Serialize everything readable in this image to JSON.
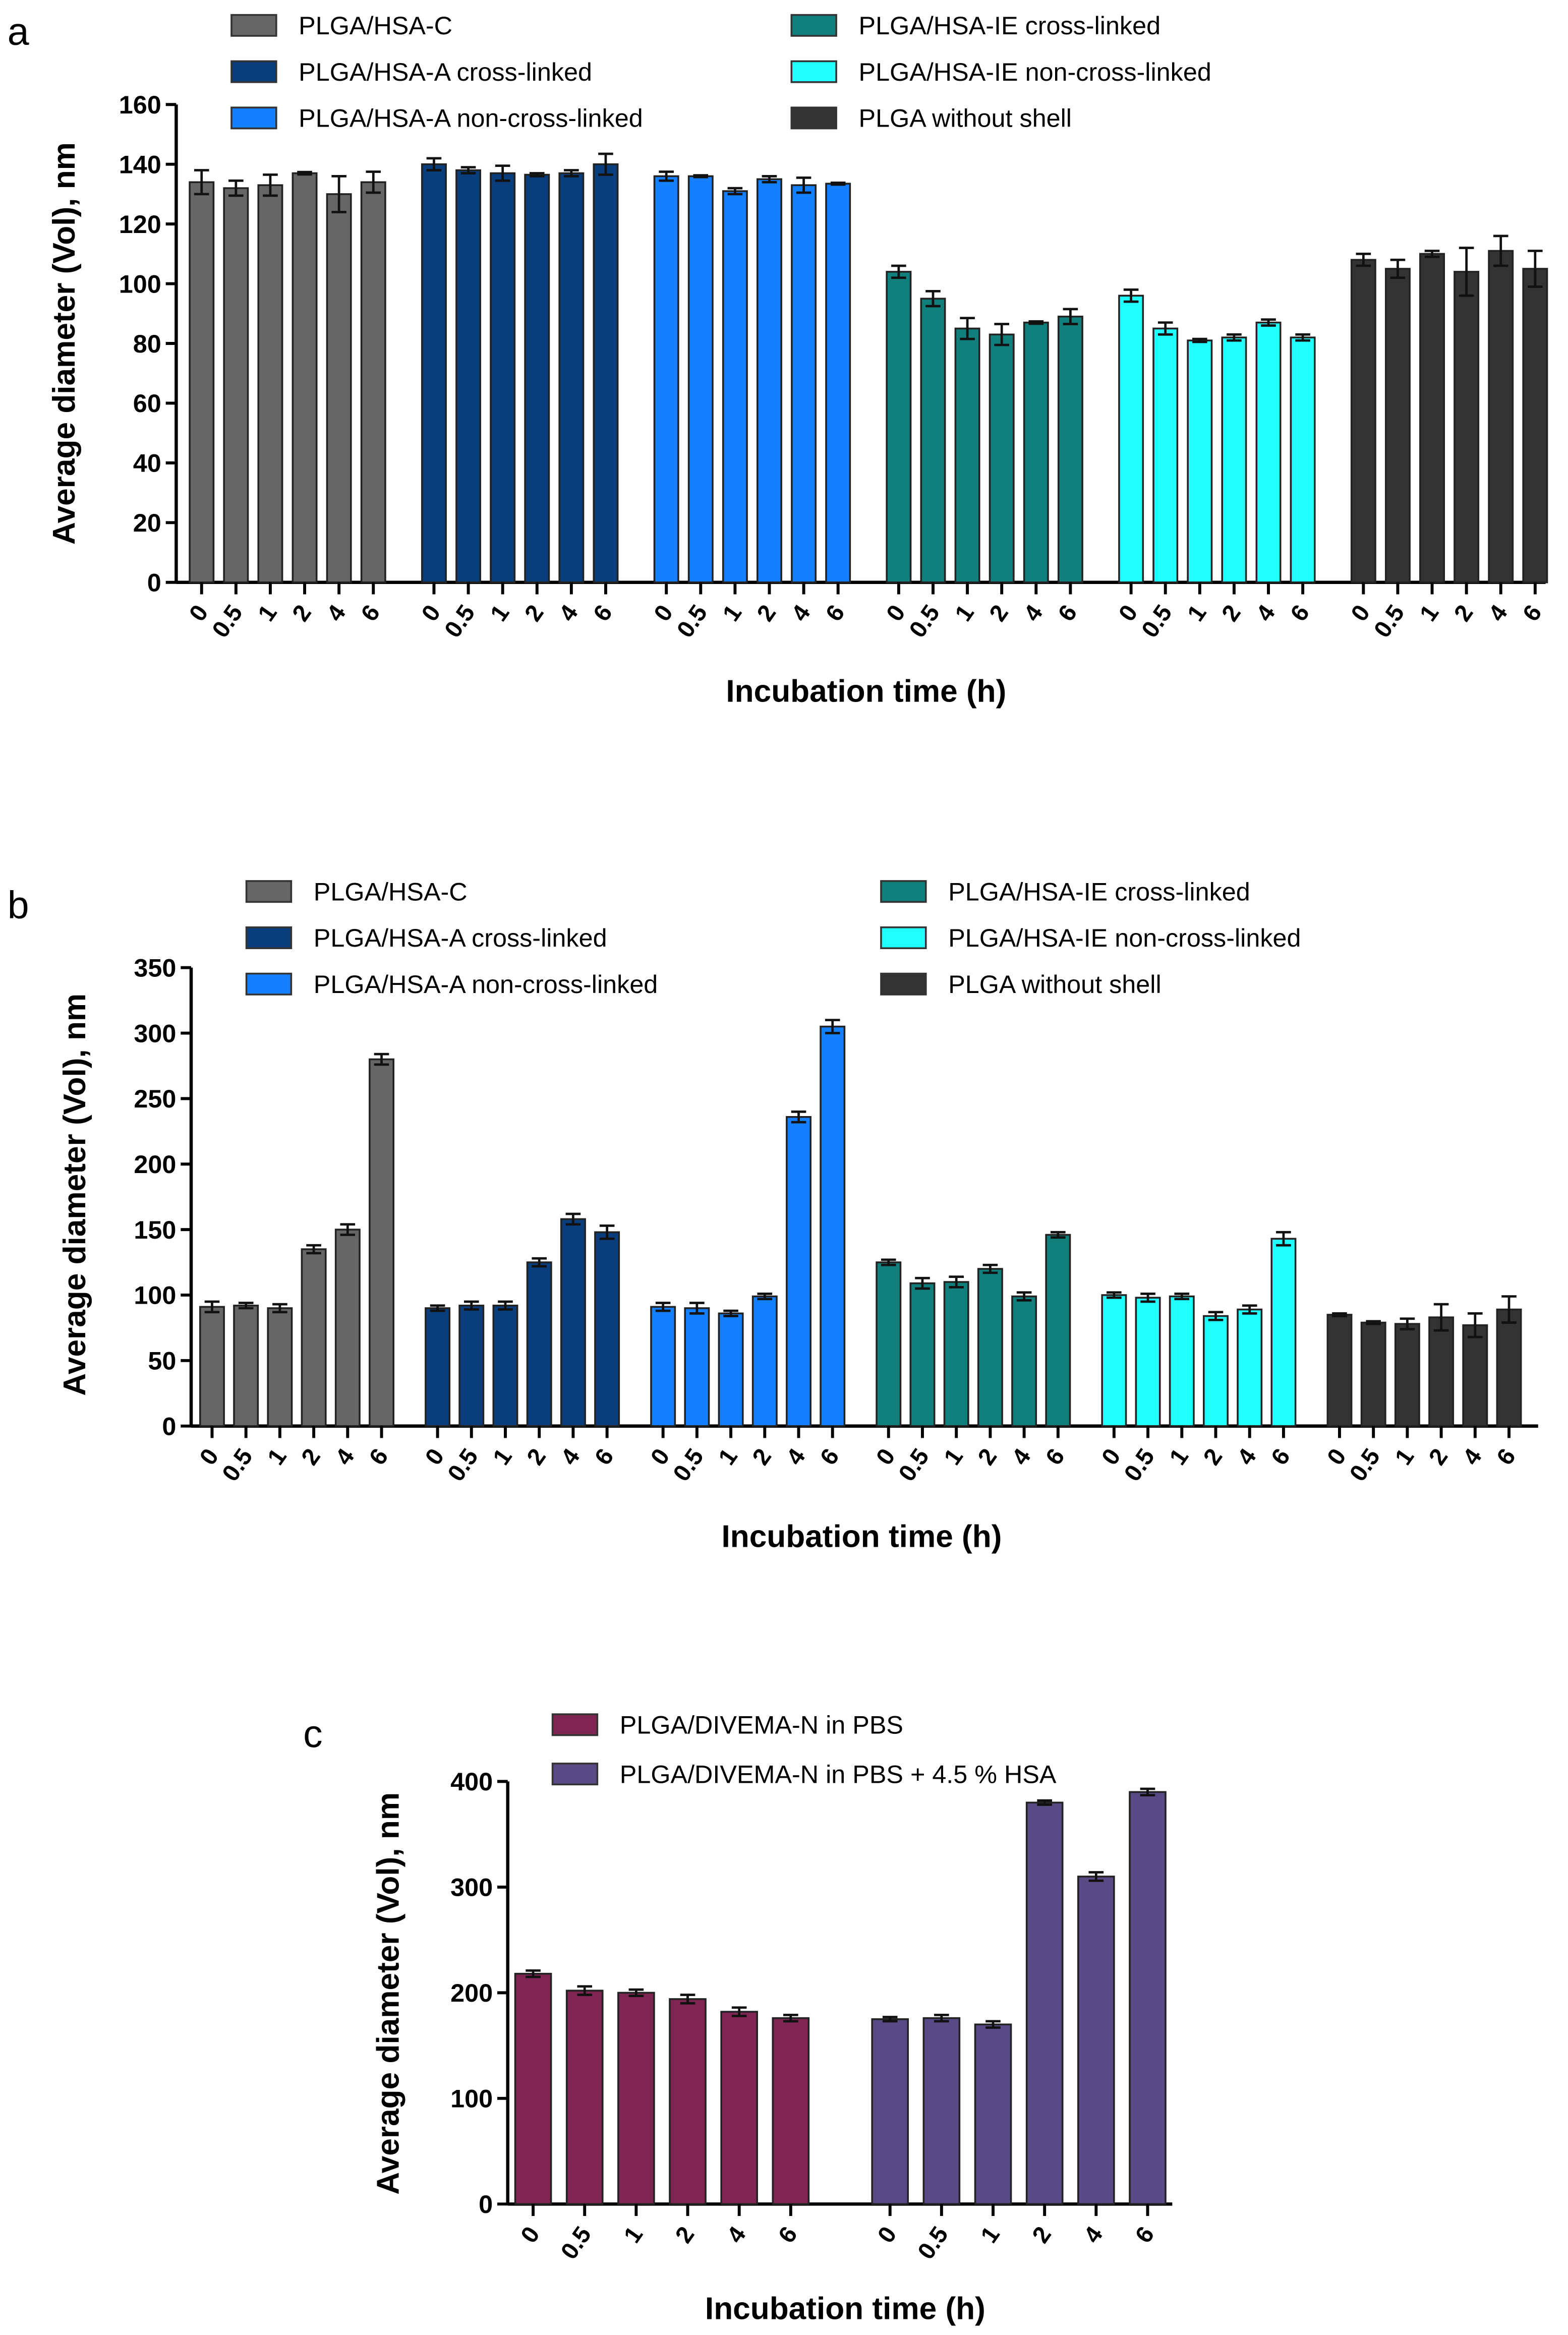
{
  "chart_data": [
    {
      "panel": "a",
      "type": "bar",
      "categories": [
        "0",
        "0.5",
        "1",
        "2",
        "4",
        "6"
      ],
      "xlabel": "Incubation time (h)",
      "ylabel": "Average diameter (Vol), nm",
      "ylim": [
        0,
        160
      ],
      "yticks": [
        0,
        20,
        40,
        60,
        80,
        100,
        120,
        140,
        160
      ],
      "grid": false,
      "legend": "top",
      "series": [
        {
          "name": "PLGA/HSA-C",
          "color": "#666666",
          "values": [
            134,
            132,
            133,
            137,
            130,
            134
          ],
          "errors": [
            4,
            2.5,
            3.5,
            0.4,
            6,
            3.5
          ]
        },
        {
          "name": "PLGA/HSA-A cross-linked",
          "color": "#0a3d7c",
          "values": [
            140,
            138,
            137,
            136.5,
            137,
            140
          ],
          "errors": [
            2,
            1,
            2.5,
            0.5,
            1,
            3.5
          ]
        },
        {
          "name": "PLGA/HSA-A non-cross-linked",
          "color": "#1480ff",
          "values": [
            136,
            136,
            131,
            135,
            133,
            133.5
          ],
          "errors": [
            1.5,
            0.3,
            1,
            1,
            2.5,
            0.3
          ]
        },
        {
          "name": "PLGA/HSA-IE cross-linked",
          "color": "#11807c",
          "values": [
            104,
            95,
            85,
            83,
            87,
            89
          ],
          "errors": [
            2,
            2.5,
            3.5,
            3.5,
            0.4,
            2.5
          ]
        },
        {
          "name": "PLGA/HSA-IE non-cross-linked",
          "color": "#22ffff",
          "values": [
            96,
            85,
            81,
            82,
            87,
            82
          ],
          "errors": [
            2,
            2,
            0.5,
            1,
            1,
            1
          ]
        },
        {
          "name": "PLGA without shell",
          "color": "#333333",
          "values": [
            108,
            105,
            110,
            104,
            111,
            105
          ],
          "errors": [
            2,
            3,
            1,
            8,
            5,
            6
          ]
        }
      ]
    },
    {
      "panel": "b",
      "type": "bar",
      "categories": [
        "0",
        "0.5",
        "1",
        "2",
        "4",
        "6"
      ],
      "xlabel": "Incubation time (h)",
      "ylabel": "Average diameter (Vol), nm",
      "ylim": [
        0,
        350
      ],
      "yticks": [
        0,
        50,
        100,
        150,
        200,
        250,
        300,
        350
      ],
      "grid": false,
      "legend": "top",
      "series": [
        {
          "name": "PLGA/HSA-C",
          "color": "#666666",
          "values": [
            91,
            92,
            90,
            135,
            150,
            280
          ],
          "errors": [
            4,
            2,
            3,
            3,
            4,
            4
          ]
        },
        {
          "name": "PLGA/HSA-A cross-linked",
          "color": "#0a3d7c",
          "values": [
            90,
            92,
            92,
            125,
            158,
            148
          ],
          "errors": [
            2,
            3,
            3,
            3,
            4,
            5
          ]
        },
        {
          "name": "PLGA/HSA-A non-cross-linked",
          "color": "#1480ff",
          "values": [
            91,
            90,
            86,
            99,
            236,
            305
          ],
          "errors": [
            3,
            4,
            2,
            2,
            4,
            5
          ]
        },
        {
          "name": "PLGA/HSA-IE cross-linked",
          "color": "#11807c",
          "values": [
            125,
            109,
            110,
            120,
            99,
            146
          ],
          "errors": [
            2,
            4,
            4,
            3,
            3,
            2
          ]
        },
        {
          "name": "PLGA/HSA-IE non-cross-linked",
          "color": "#22ffff",
          "values": [
            100,
            98,
            99,
            84,
            89,
            143
          ],
          "errors": [
            2,
            3,
            2,
            3,
            3,
            5
          ]
        },
        {
          "name": "PLGA without shell",
          "color": "#333333",
          "values": [
            85,
            79,
            78,
            83,
            77,
            89
          ],
          "errors": [
            1,
            1,
            4,
            10,
            9,
            10
          ]
        }
      ]
    },
    {
      "panel": "c",
      "type": "bar",
      "categories": [
        "0",
        "0.5",
        "1",
        "2",
        "4",
        "6"
      ],
      "xlabel": "Incubation time (h)",
      "ylabel": "Average diameter (Vol), nm",
      "ylim": [
        0,
        400
      ],
      "yticks": [
        0,
        100,
        200,
        300,
        400
      ],
      "grid": false,
      "legend": "top",
      "series": [
        {
          "name": "PLGA/DIVEMA-N in PBS",
          "color": "#7e2552",
          "values": [
            218,
            202,
            200,
            194,
            182,
            176
          ],
          "errors": [
            3,
            4,
            3,
            4,
            4,
            3
          ]
        },
        {
          "name": "PLGA/DIVEMA-N in PBS + 4.5 % HSA",
          "color": "#574a85",
          "values": [
            175,
            176,
            170,
            380,
            310,
            390
          ],
          "errors": [
            2,
            3,
            3,
            2,
            4,
            3
          ]
        }
      ]
    }
  ]
}
